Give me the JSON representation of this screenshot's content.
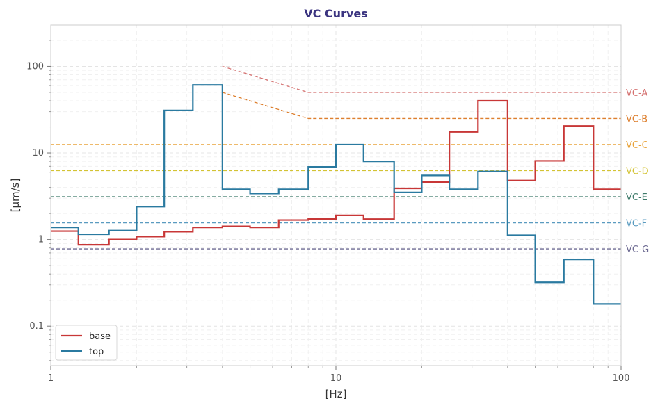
{
  "chart_data": {
    "type": "line",
    "title": "VC Curves",
    "xlabel": "[Hz]",
    "ylabel": "[µm/s]",
    "xscale": "log",
    "yscale": "log",
    "xlim": [
      1,
      100
    ],
    "ylim": [
      0.035,
      300
    ],
    "grid": true,
    "legend_position": "bottom-left",
    "x_ticks": [
      {
        "value": 1,
        "label": "1"
      },
      {
        "value": 10,
        "label": "10"
      },
      {
        "value": 100,
        "label": "100"
      }
    ],
    "y_ticks": [
      {
        "value": 0.1,
        "label": "0.1"
      },
      {
        "value": 1,
        "label": "1"
      },
      {
        "value": 10,
        "label": "10"
      },
      {
        "value": 100,
        "label": "100"
      }
    ],
    "series": [
      {
        "name": "base",
        "color": "#c83737",
        "edges": [
          1,
          1.25,
          1.6,
          2,
          2.5,
          3.15,
          4,
          5,
          6.3,
          8,
          10,
          12.5,
          16,
          20,
          25,
          31.5,
          40,
          50,
          63,
          80,
          100
        ],
        "values": [
          1.25,
          0.87,
          1.0,
          1.08,
          1.23,
          1.38,
          1.42,
          1.38,
          1.68,
          1.73,
          1.9,
          1.72,
          3.9,
          4.6,
          17.5,
          40,
          4.8,
          8.1,
          20.5,
          3.8
        ]
      },
      {
        "name": "top",
        "color": "#2a7aa0",
        "edges": [
          1,
          1.25,
          1.6,
          2,
          2.5,
          3.15,
          4,
          5,
          6.3,
          8,
          10,
          12.5,
          16,
          20,
          25,
          31.5,
          40,
          50,
          63,
          80,
          100
        ],
        "values": [
          1.38,
          1.15,
          1.27,
          2.4,
          31,
          61,
          3.8,
          3.4,
          3.8,
          6.9,
          12.5,
          8.0,
          3.5,
          5.5,
          3.8,
          6.1,
          1.12,
          0.32,
          0.59,
          0.18
        ]
      }
    ],
    "vc_criteria": [
      {
        "name": "VC-A",
        "value": 50,
        "sloped_start": 100,
        "sloped_from_hz": 4,
        "sloped_to_hz": 8,
        "color": "#d4706f"
      },
      {
        "name": "VC-B",
        "value": 25,
        "sloped_start": 50,
        "sloped_from_hz": 4,
        "sloped_to_hz": 8,
        "color": "#dd7f2e"
      },
      {
        "name": "VC-C",
        "value": 12.5,
        "color": "#e8a33a"
      },
      {
        "name": "VC-D",
        "value": 6.25,
        "color": "#d3c334"
      },
      {
        "name": "VC-E",
        "value": 3.12,
        "color": "#3d7a6a"
      },
      {
        "name": "VC-F",
        "value": 1.56,
        "color": "#5a9bc0"
      },
      {
        "name": "VC-G",
        "value": 0.78,
        "color": "#6d6a92"
      }
    ]
  }
}
